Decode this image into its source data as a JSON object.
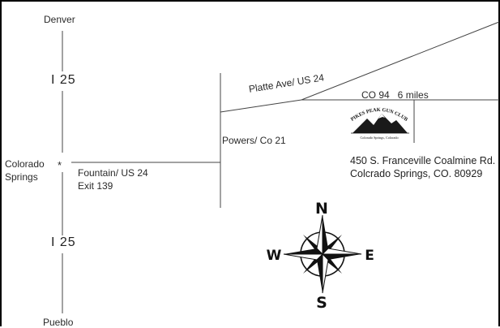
{
  "cities": {
    "north": "Denver",
    "south": "Pueblo",
    "origin_line1": "Colorado",
    "origin_line2": "Springs",
    "origin_marker": "*"
  },
  "highways": {
    "i25_north": "I 25",
    "i25_south": "I 25"
  },
  "roads": {
    "fountain_line1": "Fountain/ US 24",
    "fountain_line2": "Exit 139",
    "powers": "Powers/ Co 21",
    "platte": "Platte Ave/ US 24",
    "co94": "CO 94   6 miles"
  },
  "destination": {
    "logo_arc_text": "PIKES PEAK GUN CLUB",
    "logo_sub_text": "Colorado Springs, Colorado",
    "address_line1": "450 S. Franceville Coalmine Rd.",
    "address_line2": "Colcrado Springs, CO. 80929"
  },
  "compass": {
    "north": "N",
    "east": "E",
    "south": "S",
    "west": "W"
  },
  "colors": {
    "road_line": "#333333",
    "ink": "#111111",
    "border": "#000000"
  }
}
